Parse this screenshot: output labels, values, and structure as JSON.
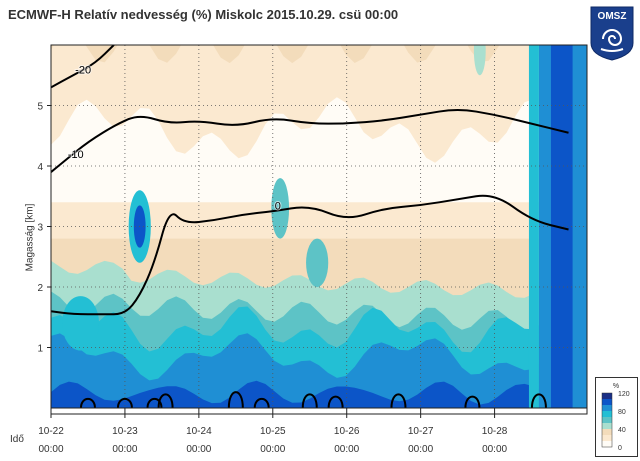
{
  "header": {
    "title": "ECMWF-H Relatív nedvesség (%) Miskolc 2015.10.29. csü 00:00"
  },
  "logo": {
    "text": "OMSZ",
    "brand_color": "#1a3f8c"
  },
  "colors": {
    "rh_0_20": "#fffcf6",
    "rh_20_40": "#fbe9d0",
    "rh_40_60": "#f3dcbb",
    "rh_60_70": "#a9dfcf",
    "rh_70_80": "#5dc3c6",
    "rh_80_90": "#23bfd4",
    "rh_90_100": "#1f8fd4",
    "rh_100_110": "#0c55c8",
    "rh_110_120": "#1b2f86",
    "contour": "#000000"
  },
  "chart_data": {
    "type": "heatmap",
    "title": "ECMWF-H Relatív nedvesség (%) Miskolc 2015.10.29. csü 00:00",
    "ylabel": "Magasság [km]",
    "xlabel": "Idő",
    "ylim": [
      0,
      6
    ],
    "xlim": [
      "10-22 00:00",
      "10-29 06:00"
    ],
    "x_ticks": [
      {
        "date": "10-22",
        "time": "00:00",
        "day": 0
      },
      {
        "date": "10-23",
        "time": "00:00",
        "day": 1
      },
      {
        "date": "10-24",
        "time": "00:00",
        "day": 2
      },
      {
        "date": "10-25",
        "time": "00:00",
        "day": 3
      },
      {
        "date": "10-26",
        "time": "00:00",
        "day": 4
      },
      {
        "date": "10-27",
        "time": "00:00",
        "day": 5
      },
      {
        "date": "10-28",
        "time": "00:00",
        "day": 6
      }
    ],
    "y_ticks": [
      1,
      2,
      3,
      4,
      5
    ],
    "grid": true,
    "legend": {
      "title": "%",
      "labels": [
        "120",
        "80",
        "40",
        "0"
      ],
      "placement": "bottom-right"
    },
    "temperature_isolines": [
      {
        "label": "-20",
        "x": [
          0,
          0.3,
          0.6,
          0.85
        ],
        "y": [
          5.3,
          5.5,
          5.7,
          6.0
        ]
      },
      {
        "label": "-10",
        "x": [
          0,
          0.2,
          0.5,
          0.9,
          1.2,
          1.6,
          2.0,
          2.5,
          3.0,
          3.5,
          4.0,
          4.5,
          5.0,
          5.5,
          6.0,
          6.5,
          7.0
        ],
        "y": [
          3.9,
          4.1,
          4.4,
          4.7,
          4.85,
          4.7,
          4.75,
          4.65,
          4.8,
          4.7,
          4.7,
          4.75,
          4.85,
          4.95,
          4.85,
          4.7,
          4.55
        ]
      },
      {
        "label": "0",
        "x": [
          0,
          0.3,
          0.7,
          1.0,
          1.2,
          1.4,
          1.6,
          1.8,
          2.2,
          2.6,
          3.0,
          3.5,
          4.0,
          4.5,
          5.0,
          5.5,
          6.0,
          6.5,
          7.0
        ],
        "y": [
          1.6,
          1.55,
          1.55,
          1.55,
          1.85,
          2.4,
          3.3,
          3.05,
          3.1,
          3.2,
          3.25,
          3.35,
          3.1,
          3.3,
          3.35,
          3.45,
          3.55,
          3.1,
          2.95
        ]
      }
    ],
    "rh_100_contours": [
      {
        "x_center": 0.5,
        "height": 0.2
      },
      {
        "x_center": 1.0,
        "height": 0.2
      },
      {
        "x_center": 1.4,
        "height": 0.2
      },
      {
        "x_center": 1.55,
        "height": 0.3
      },
      {
        "x_center": 2.5,
        "height": 0.35
      },
      {
        "x_center": 2.85,
        "height": 0.2
      },
      {
        "x_center": 3.5,
        "height": 0.3
      },
      {
        "x_center": 3.85,
        "height": 0.25
      },
      {
        "x_center": 4.7,
        "height": 0.3
      },
      {
        "x_center": 5.7,
        "height": 0.25
      },
      {
        "x_center": 6.6,
        "height": 0.3
      }
    ]
  }
}
